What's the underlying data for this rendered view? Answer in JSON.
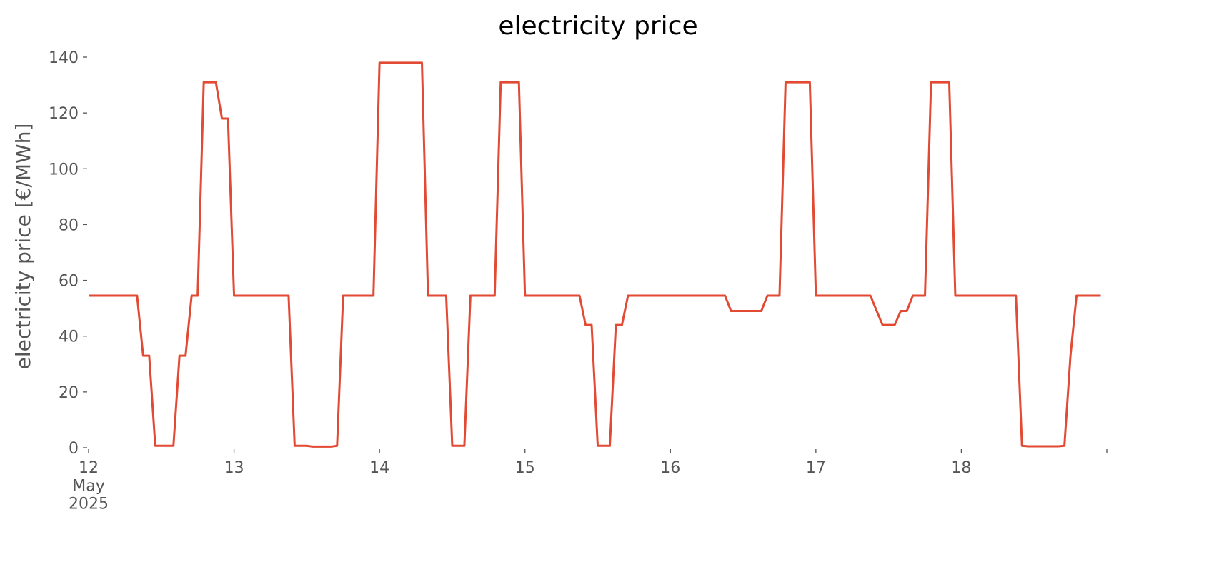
{
  "chart_data": {
    "type": "line",
    "title": "electricity price",
    "y_label": "electricity price [€/MWh]",
    "x": [
      0,
      1,
      2,
      3,
      4,
      5,
      6,
      7,
      8,
      9,
      10,
      11,
      12,
      13,
      14,
      15,
      16,
      17,
      18,
      19,
      20,
      21,
      22,
      23,
      24,
      25,
      26,
      27,
      28,
      29,
      30,
      31,
      32,
      33,
      34,
      35,
      36,
      37,
      38,
      39,
      40,
      41,
      42,
      43,
      44,
      45,
      46,
      47,
      48,
      49,
      50,
      51,
      52,
      53,
      54,
      55,
      56,
      57,
      58,
      59,
      60,
      61,
      62,
      63,
      64,
      65,
      66,
      67,
      68,
      69,
      70,
      71,
      72,
      73,
      74,
      75,
      76,
      77,
      78,
      79,
      80,
      81,
      82,
      83,
      84,
      85,
      86,
      87,
      88,
      89,
      90,
      91,
      92,
      93,
      94,
      95,
      96,
      97,
      98,
      99,
      100,
      101,
      102,
      103,
      104,
      105,
      106,
      107,
      108,
      109,
      110,
      111,
      112,
      113,
      114,
      115,
      116,
      117,
      118,
      119,
      120,
      121,
      122,
      123,
      124,
      125,
      126,
      127,
      128,
      129,
      130,
      131,
      132,
      133,
      134,
      135,
      136,
      137,
      138,
      139,
      140,
      141,
      142,
      143,
      144,
      145,
      146,
      147,
      148,
      149,
      150,
      151,
      152,
      153,
      154,
      155,
      156,
      157,
      158,
      159,
      160,
      161,
      162,
      163,
      164,
      165,
      166,
      167
    ],
    "series": [
      {
        "color": "#E24A33",
        "values": [
          54.5,
          54.5,
          54.5,
          54.5,
          54.5,
          54.5,
          54.5,
          54.5,
          54.5,
          33,
          33,
          0.7,
          0.7,
          0.7,
          0.7,
          33,
          33,
          54.5,
          54.5,
          131,
          131,
          131,
          118,
          118,
          54.5,
          54.5,
          54.5,
          54.5,
          54.5,
          54.5,
          54.5,
          54.5,
          54.5,
          54.5,
          0.7,
          0.7,
          0.7,
          0.4,
          0.4,
          0.4,
          0.4,
          0.7,
          54.5,
          54.5,
          54.5,
          54.5,
          54.5,
          54.5,
          138,
          138,
          138,
          138,
          138,
          138,
          138,
          138,
          54.5,
          54.5,
          54.5,
          54.5,
          0.7,
          0.7,
          0.7,
          54.5,
          54.5,
          54.5,
          54.5,
          54.5,
          131,
          131,
          131,
          131,
          54.5,
          54.5,
          54.5,
          54.5,
          54.5,
          54.5,
          54.5,
          54.5,
          54.5,
          54.5,
          44,
          44,
          0.7,
          0.7,
          0.7,
          44,
          44,
          54.5,
          54.5,
          54.5,
          54.5,
          54.5,
          54.5,
          54.5,
          54.5,
          54.5,
          54.5,
          54.5,
          54.5,
          54.5,
          54.5,
          54.5,
          54.5,
          54.5,
          49,
          49,
          49,
          49,
          49,
          49,
          54.5,
          54.5,
          54.5,
          131,
          131,
          131,
          131,
          131,
          54.5,
          54.5,
          54.5,
          54.5,
          54.5,
          54.5,
          54.5,
          54.5,
          54.5,
          54.5,
          49.2,
          44,
          44,
          44,
          49,
          49,
          54.5,
          54.5,
          54.5,
          131,
          131,
          131,
          131,
          54.5,
          54.5,
          54.5,
          54.5,
          54.5,
          54.5,
          54.5,
          54.5,
          54.5,
          54.5,
          54.5,
          0.7,
          0.5,
          0.5,
          0.5,
          0.5,
          0.5,
          0.5,
          0.7,
          33,
          54.5,
          54.5,
          54.5,
          54.5,
          54.5
        ]
      }
    ],
    "xlim": [
      0,
      168
    ],
    "xticks": [
      {
        "value": 0,
        "label": "12\nMay\n2025"
      },
      {
        "value": 24,
        "label": "13"
      },
      {
        "value": 48,
        "label": "14"
      },
      {
        "value": 72,
        "label": "15"
      },
      {
        "value": 96,
        "label": "16"
      },
      {
        "value": 120,
        "label": "17"
      },
      {
        "value": 144,
        "label": "18"
      },
      {
        "value": 168,
        "label": null
      }
    ],
    "ylim": [
      0,
      140
    ],
    "yticks": [
      0,
      20,
      40,
      60,
      80,
      100,
      120,
      140
    ],
    "grid": false
  }
}
